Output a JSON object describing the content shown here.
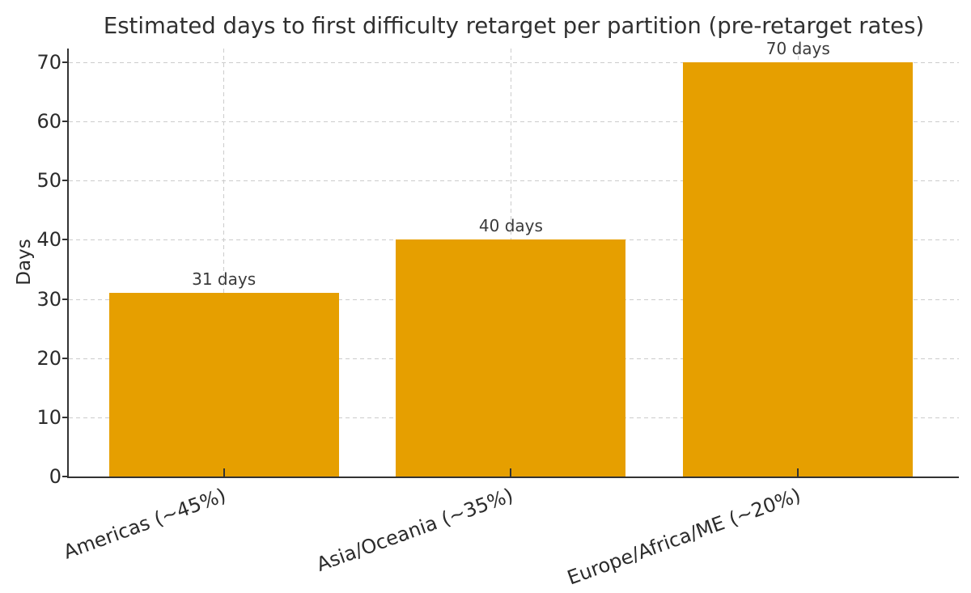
{
  "chart_data": {
    "type": "bar",
    "title": "Estimated days to first difficulty retarget per partition (pre-retarget rates)",
    "xlabel": "",
    "ylabel": "Days",
    "categories": [
      "Americas (~45%)",
      "Asia/Oceania (~35%)",
      "Europe/Africa/ME (~20%)"
    ],
    "values": [
      31,
      40,
      70
    ],
    "bar_labels": [
      "31 days",
      "40 days",
      "70 days"
    ],
    "yticks": [
      0,
      10,
      20,
      30,
      40,
      50,
      60,
      70
    ],
    "ylim": [
      0,
      70
    ],
    "grid": {
      "horizontal": true,
      "vertical": true,
      "style": "dashed"
    },
    "legend_position": "none",
    "bar_color": "#E69F00",
    "grid_color": "#cccccc",
    "text_color": "#2b2b2b",
    "spine_color": "#333333"
  }
}
